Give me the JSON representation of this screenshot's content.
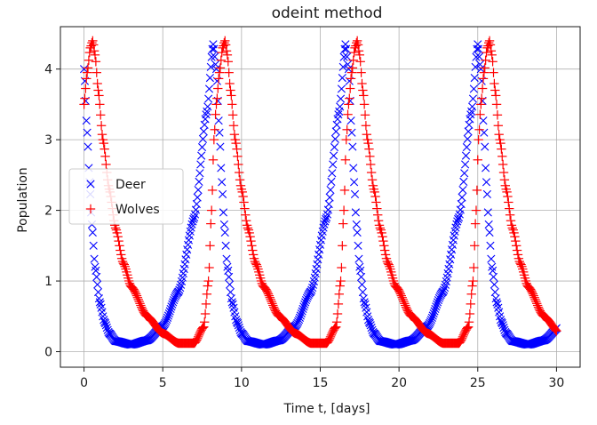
{
  "chart_data": {
    "type": "scatter",
    "title": "odeint method",
    "xlabel": "Time t, [days]",
    "ylabel": "Population",
    "xlim": [
      -1.5,
      31.5
    ],
    "ylim": [
      -0.22,
      4.6
    ],
    "xticks": [
      0,
      5,
      10,
      15,
      20,
      25,
      30
    ],
    "yticks": [
      0,
      1,
      2,
      3,
      4
    ],
    "grid": true,
    "legend_position": "center-left",
    "t_range": [
      0,
      30
    ],
    "samples": 600,
    "period_days": 8.4,
    "series": [
      {
        "name": "Deer",
        "marker": "x",
        "color": "#0000ff",
        "waveform": {
          "t": [
            0,
            0.2,
            0.35,
            0.5,
            0.7,
            1.0,
            1.3,
            1.6,
            2.0,
            3.0,
            4.0,
            5.0,
            6.0,
            7.0,
            7.8,
            8.2,
            8.4
          ],
          "y": [
            4.0,
            3.1,
            2.4,
            1.8,
            1.2,
            0.7,
            0.42,
            0.26,
            0.15,
            0.1,
            0.16,
            0.36,
            0.85,
            1.9,
            3.4,
            4.35,
            4.0
          ]
        }
      },
      {
        "name": "Wolves",
        "marker": "+",
        "color": "#ff0000",
        "waveform": {
          "t": [
            0,
            0.2,
            0.4,
            0.55,
            0.7,
            0.9,
            1.2,
            1.6,
            2.0,
            2.5,
            3.0,
            4.0,
            5.0,
            6.0,
            7.0,
            7.6,
            7.9,
            8.1,
            8.25,
            8.4
          ],
          "y": [
            3.5,
            3.95,
            4.3,
            4.4,
            4.2,
            3.7,
            3.0,
            2.3,
            1.75,
            1.25,
            0.92,
            0.5,
            0.26,
            0.12,
            0.12,
            0.35,
            1.0,
            2.0,
            3.0,
            3.5
          ]
        }
      }
    ]
  }
}
